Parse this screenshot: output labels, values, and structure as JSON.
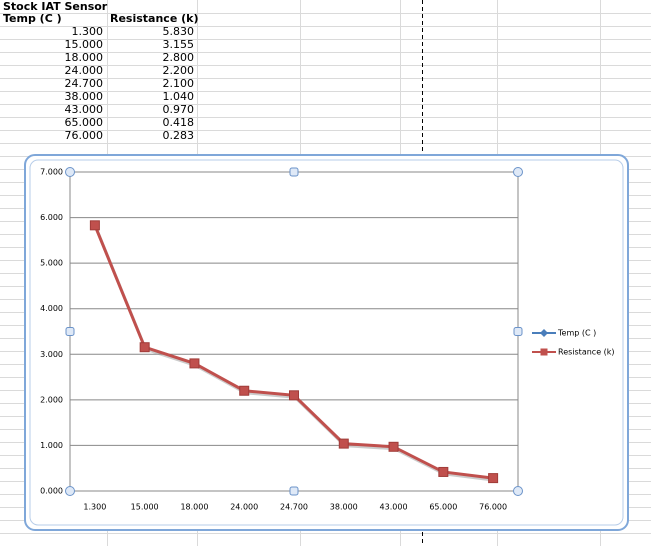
{
  "sheet": {
    "title": "Stock IAT Sensor",
    "headers": [
      "Temp (C )",
      "Resistance (k)"
    ],
    "rows": [
      [
        "1.300",
        "5.830"
      ],
      [
        "15.000",
        "3.155"
      ],
      [
        "18.000",
        "2.800"
      ],
      [
        "24.000",
        "2.200"
      ],
      [
        "24.700",
        "2.100"
      ],
      [
        "38.000",
        "1.040"
      ],
      [
        "43.000",
        "0.970"
      ],
      [
        "65.000",
        "0.418"
      ],
      [
        "76.000",
        "0.283"
      ]
    ]
  },
  "chart_data": {
    "type": "line",
    "categories": [
      "1.300",
      "15.000",
      "18.000",
      "24.000",
      "24.700",
      "38.000",
      "43.000",
      "65.000",
      "76.000"
    ],
    "series": [
      {
        "name": "Temp (C )",
        "color": "#4a7ebb",
        "values": [
          null,
          null,
          null,
          null,
          null,
          null,
          null,
          null,
          null
        ]
      },
      {
        "name": "Resistance (k)",
        "color": "#c0504d",
        "values": [
          5.83,
          3.155,
          2.8,
          2.2,
          2.1,
          1.04,
          0.97,
          0.418,
          0.283
        ]
      }
    ],
    "ylim": [
      0,
      7
    ],
    "yticks": [
      {
        "value": 0,
        "label": "0.000"
      },
      {
        "value": 1,
        "label": "1.000"
      },
      {
        "value": 2,
        "label": "2.000"
      },
      {
        "value": 3,
        "label": "3.000"
      },
      {
        "value": 4,
        "label": "4.000"
      },
      {
        "value": 5,
        "label": "5.000"
      },
      {
        "value": 6,
        "label": "6.000"
      },
      {
        "value": 7,
        "label": "7.000"
      }
    ],
    "grid": true,
    "legend": "right"
  }
}
